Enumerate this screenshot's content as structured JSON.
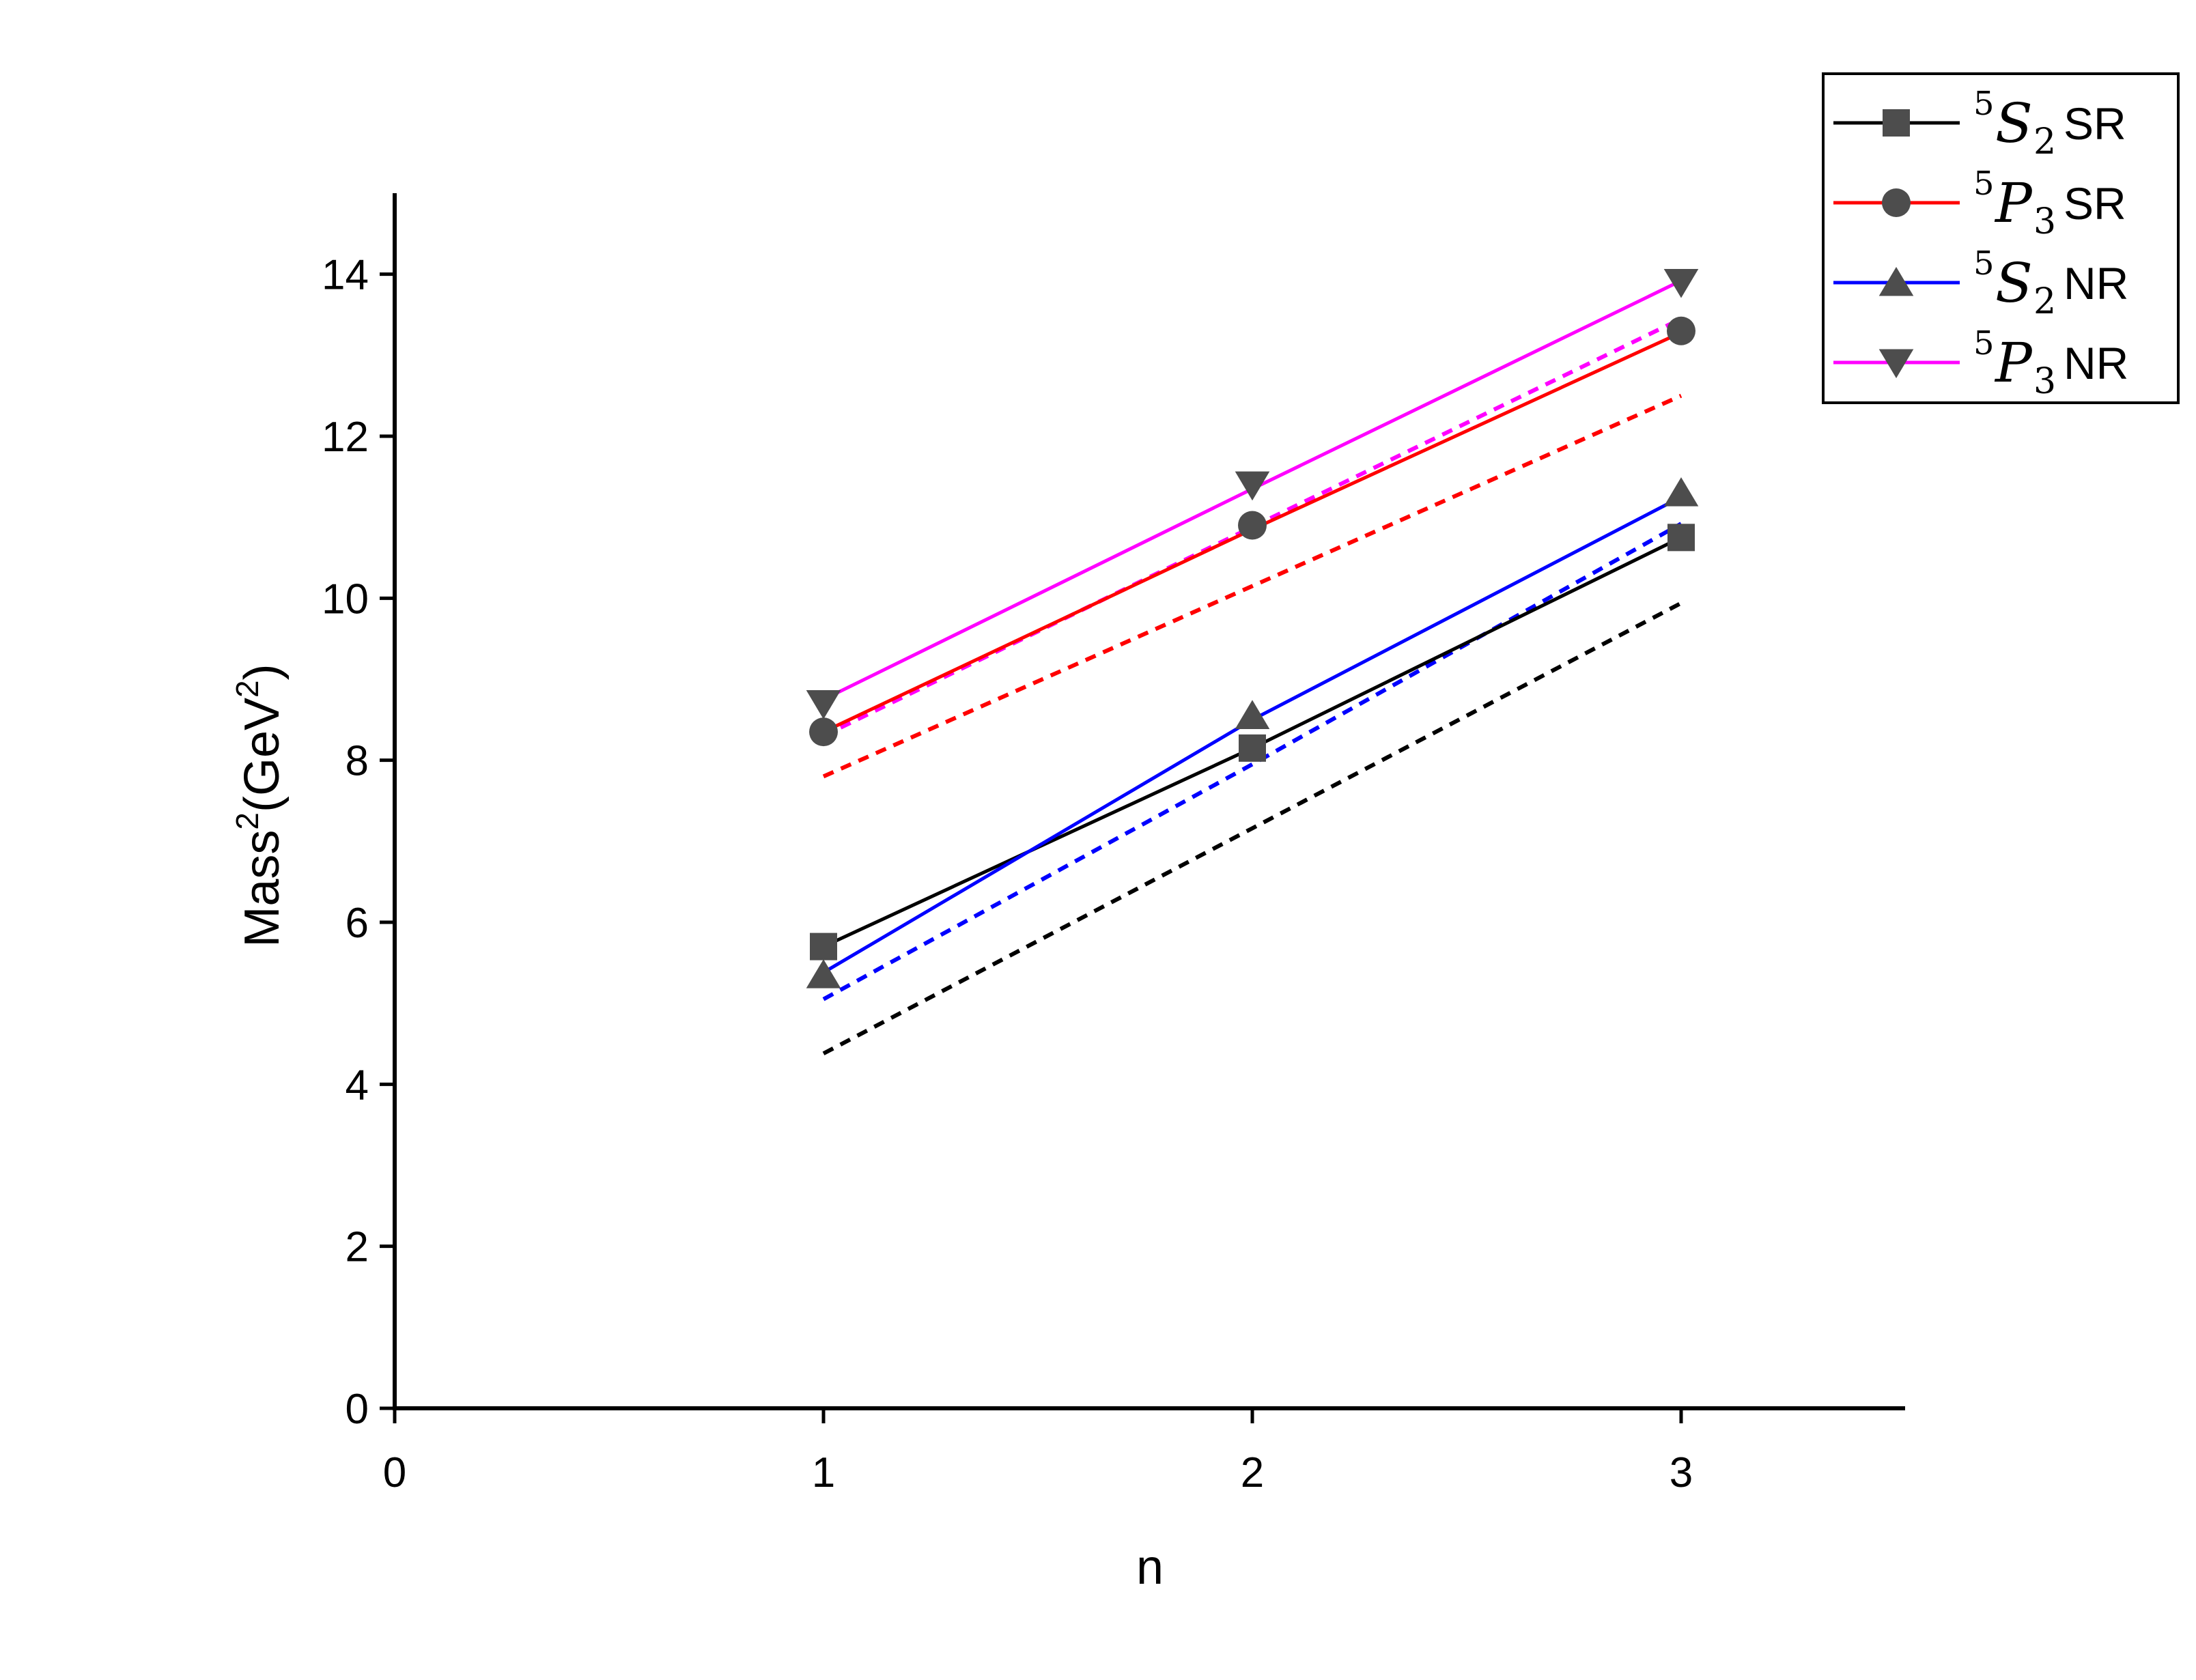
{
  "chart_data": {
    "type": "line",
    "title": "",
    "xlabel": "n",
    "ylabel": {
      "main": "Mass",
      "sup1": "2",
      "paren_open": "(GeV",
      "sup2": "2",
      "paren_close": ")"
    },
    "xlim": [
      0,
      3.5
    ],
    "ylim": [
      0,
      15
    ],
    "xticks": [
      0,
      1,
      2,
      3
    ],
    "yticks": [
      0,
      2,
      4,
      6,
      8,
      10,
      12,
      14
    ],
    "x": [
      1,
      2,
      3
    ],
    "grid": false,
    "legend_position": "top-right",
    "marker_color": "#4d4d4d",
    "series": [
      {
        "name": {
          "sup": "5",
          "letter": "S",
          "sub": "2",
          "suffix": "SR"
        },
        "color": "#000000",
        "marker": "square",
        "values": [
          5.7,
          8.15,
          10.75
        ],
        "fit": [
          5.7,
          8.15,
          10.75
        ],
        "fit_dashed": [
          4.38,
          7.16,
          9.94
        ]
      },
      {
        "name": {
          "sup": "5",
          "letter": "P",
          "sub": "3",
          "suffix": "SR"
        },
        "color": "#ff0000",
        "marker": "circle",
        "values": [
          8.35,
          10.9,
          13.3
        ],
        "fit": [
          8.35,
          10.85,
          13.28
        ],
        "fit_dashed": [
          7.8,
          10.15,
          12.5
        ]
      },
      {
        "name": {
          "sup": "5",
          "letter": "S",
          "sub": "2",
          "suffix": "NR"
        },
        "color": "#0000ff",
        "marker": "triangle-up",
        "values": [
          5.35,
          8.55,
          11.3
        ],
        "fit": [
          5.38,
          8.5,
          11.25
        ],
        "fit_dashed": [
          5.05,
          7.95,
          10.92
        ]
      },
      {
        "name": {
          "sup": "5",
          "letter": "P",
          "sub": "3",
          "suffix": "NR"
        },
        "color": "#ff00ff",
        "marker": "triangle-down",
        "values": [
          8.7,
          11.4,
          13.9
        ],
        "fit": [
          8.75,
          11.35,
          13.92
        ],
        "fit_dashed": [
          8.3,
          10.88,
          13.45
        ]
      }
    ]
  }
}
